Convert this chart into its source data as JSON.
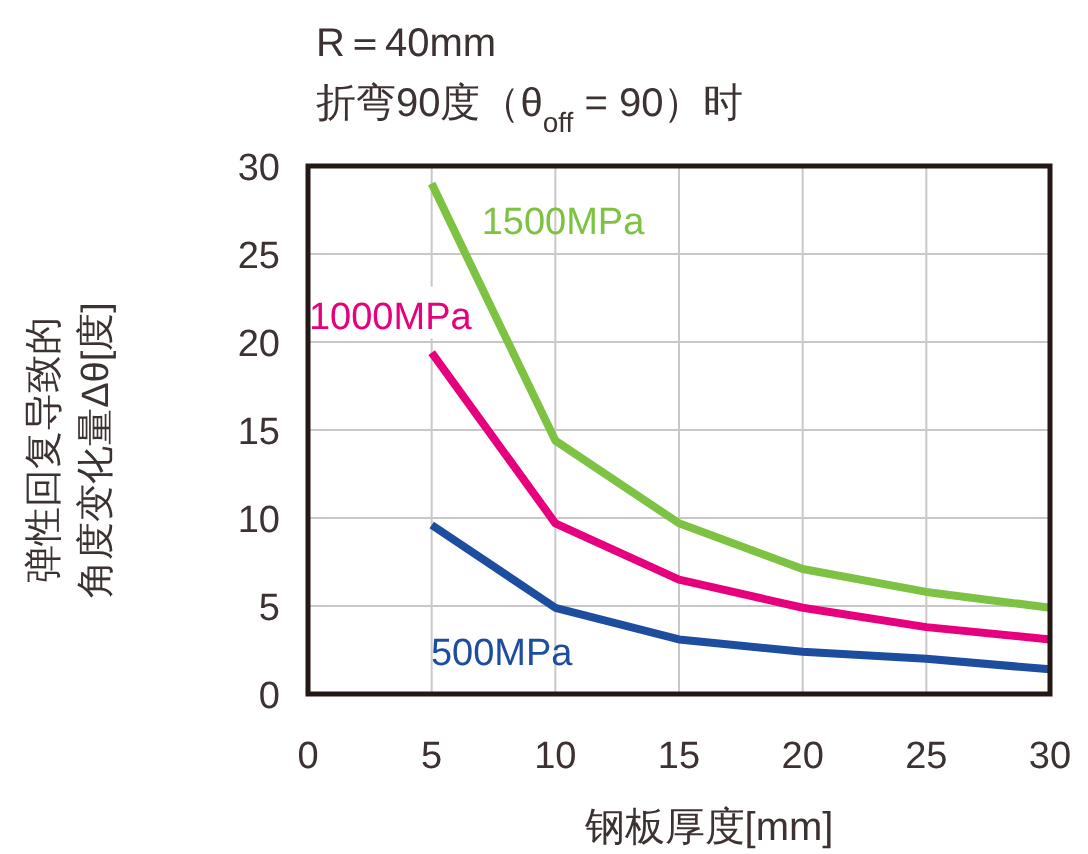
{
  "chart_data": {
    "type": "line",
    "title": "R＝40mm",
    "subtitle": "折弯90度（θ$_{off}$ = 90）时",
    "xlabel": "钢板厚度[mm]",
    "ylabel": "弹性回复导致的角度变化量Δθ[度]",
    "x": [
      5,
      10,
      15,
      20,
      25,
      30
    ],
    "series": [
      {
        "name": "1500MPa",
        "color": "#7dc242",
        "values": [
          29,
          14.4,
          9.7,
          7.1,
          5.8,
          4.9
        ]
      },
      {
        "name": "1000MPa",
        "color": "#e6007e",
        "values": [
          19.4,
          9.7,
          6.5,
          4.9,
          3.8,
          3.1
        ]
      },
      {
        "name": "500MPa",
        "color": "#1d4d9e",
        "values": [
          9.6,
          4.9,
          3.1,
          2.4,
          2.0,
          1.4
        ]
      }
    ],
    "xlim": [
      0,
      30
    ],
    "ylim": [
      0,
      30
    ],
    "xticks": [
      0,
      5,
      10,
      15,
      20,
      25,
      30
    ],
    "yticks": [
      0,
      5,
      10,
      15,
      20,
      25,
      30
    ],
    "grid": true,
    "marker": "none",
    "line_style": "solid"
  }
}
